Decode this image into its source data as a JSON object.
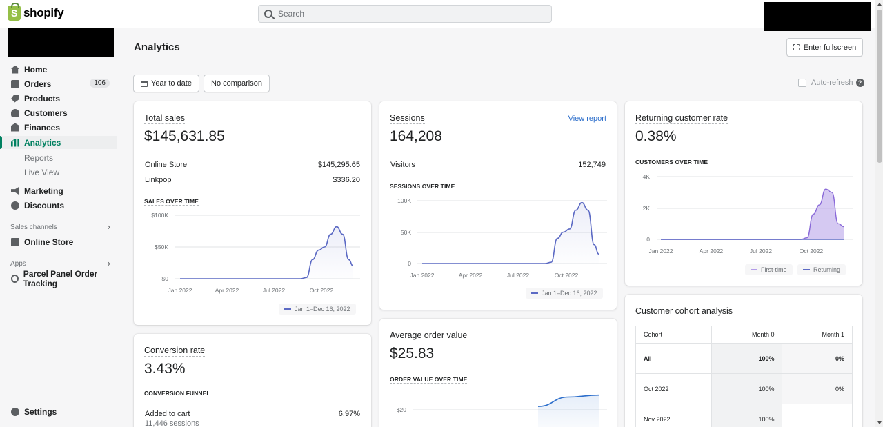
{
  "topbar": {
    "logo_text": "shopify",
    "search_placeholder": "Search"
  },
  "sidebar": {
    "items": [
      {
        "label": "Home",
        "icon": "home-icon"
      },
      {
        "label": "Orders",
        "icon": "orders-icon",
        "badge": "106"
      },
      {
        "label": "Products",
        "icon": "tag-icon"
      },
      {
        "label": "Customers",
        "icon": "person-icon"
      },
      {
        "label": "Finances",
        "icon": "bank-icon"
      },
      {
        "label": "Analytics",
        "icon": "bar-chart-icon",
        "active": true
      }
    ],
    "analytics_sub": [
      "Reports",
      "Live View"
    ],
    "items2": [
      {
        "label": "Marketing",
        "icon": "megaphone-icon"
      },
      {
        "label": "Discounts",
        "icon": "discount-icon"
      }
    ],
    "sales_channels_label": "Sales channels",
    "online_store_label": "Online Store",
    "apps_label": "Apps",
    "app_item_label": "Parcel Panel Order Tracking",
    "settings_label": "Settings"
  },
  "main": {
    "title": "Analytics",
    "fullscreen_label": "Enter fullscreen",
    "date_range_label": "Year to date",
    "comparison_label": "No comparison",
    "auto_refresh_label": "Auto-refresh",
    "help_glyph": "?"
  },
  "total_sales": {
    "title": "Total sales",
    "value": "$145,631.85",
    "rows": [
      {
        "label": "Online Store",
        "value": "$145,295.65"
      },
      {
        "label": "Linkpop",
        "value": "$336.20"
      }
    ],
    "chart_title": "SALES OVER TIME",
    "legend": "Jan 1–Dec 16, 2022"
  },
  "sessions": {
    "title": "Sessions",
    "value": "164,208",
    "view_report": "View report",
    "rows": [
      {
        "label": "Visitors",
        "value": "152,749"
      }
    ],
    "chart_title": "SESSIONS OVER TIME",
    "legend": "Jan 1–Dec 16, 2022"
  },
  "returning": {
    "title": "Returning customer rate",
    "value": "0.38%",
    "chart_title": "CUSTOMERS OVER TIME",
    "legend": [
      "First-time",
      "Returning"
    ]
  },
  "conversion": {
    "title": "Conversion rate",
    "value": "3.43%",
    "chart_title": "CONVERSION FUNNEL",
    "rows": [
      {
        "label": "Added to cart",
        "sub": "11,446 sessions",
        "value": "6.97%"
      }
    ]
  },
  "aov": {
    "title": "Average order value",
    "value": "$25.83",
    "chart_title": "ORDER VALUE OVER TIME"
  },
  "cohort": {
    "title": "Customer cohort analysis",
    "headers": [
      "Cohort",
      "Month 0",
      "Month 1"
    ],
    "rows": [
      [
        "All",
        "100%",
        "0%"
      ],
      [
        "Oct 2022",
        "100%",
        "0%"
      ],
      [
        "Nov 2022",
        "100%",
        ""
      ]
    ]
  },
  "colors": {
    "accent": "#008060",
    "line": "#5c6ac4",
    "returning_fill": "#b39ce8",
    "link": "#2c6ecb"
  },
  "chart_data": [
    {
      "type": "area",
      "title": "SALES OVER TIME",
      "x_ticks": [
        "Jan 2022",
        "Apr 2022",
        "Jul 2022",
        "Oct 2022"
      ],
      "y_ticks": [
        "$0",
        "$50K",
        "$100K"
      ],
      "ylim": [
        0,
        100000
      ],
      "series": [
        {
          "name": "Jan 1–Dec 16, 2022",
          "x": [
            0,
            1,
            2,
            3,
            4,
            5,
            6,
            7,
            8,
            8.4,
            8.8,
            9.2,
            9.6,
            10,
            10.4,
            10.8,
            11.2,
            11.5
          ],
          "y": [
            0,
            0,
            0,
            0,
            0,
            0,
            0,
            0,
            0,
            2000,
            30000,
            45000,
            50000,
            70000,
            82000,
            70000,
            30000,
            20000
          ]
        }
      ]
    },
    {
      "type": "area",
      "title": "SESSIONS OVER TIME",
      "x_ticks": [
        "Jan 2022",
        "Apr 2022",
        "Jul 2022",
        "Oct 2022"
      ],
      "y_ticks": [
        "0",
        "50K",
        "100K"
      ],
      "ylim": [
        0,
        100000
      ],
      "series": [
        {
          "name": "Jan 1–Dec 16, 2022",
          "x": [
            0,
            1,
            2,
            3,
            4,
            5,
            6,
            7,
            8,
            8.4,
            8.8,
            9.2,
            9.6,
            10,
            10.4,
            10.8,
            11.2,
            11.5
          ],
          "y": [
            0,
            0,
            0,
            0,
            0,
            0,
            0,
            0,
            0,
            2000,
            40000,
            50000,
            55000,
            85000,
            97000,
            85000,
            30000,
            15000
          ]
        }
      ]
    },
    {
      "type": "area",
      "title": "CUSTOMERS OVER TIME",
      "x_ticks": [
        "Jan 2022",
        "Apr 2022",
        "Jul 2022",
        "Oct 2022"
      ],
      "y_ticks": [
        "0",
        "2K",
        "4K"
      ],
      "ylim": [
        0,
        4000
      ],
      "series": [
        {
          "name": "First-time",
          "x": [
            0,
            2,
            4,
            6,
            8,
            9,
            9.4,
            9.8,
            10.2,
            10.6,
            11,
            11.4,
            11.8
          ],
          "y": [
            0,
            0,
            0,
            0,
            0,
            0,
            100,
            1600,
            2200,
            3200,
            3000,
            1000,
            800
          ]
        },
        {
          "name": "Returning",
          "x": [
            0,
            2,
            4,
            6,
            8,
            9,
            9.4,
            9.8,
            10.2,
            10.6,
            11,
            11.4,
            11.8
          ],
          "y": [
            0,
            0,
            0,
            0,
            0,
            0,
            0,
            0,
            0,
            0,
            0,
            0,
            0
          ]
        }
      ]
    },
    {
      "type": "line",
      "title": "ORDER VALUE OVER TIME",
      "y_ticks": [
        "$20"
      ],
      "series": [
        {
          "name": "",
          "x": [
            0,
            1,
            2,
            3,
            4
          ],
          "y": [
            null,
            null,
            15,
            20,
            21
          ]
        }
      ]
    }
  ]
}
